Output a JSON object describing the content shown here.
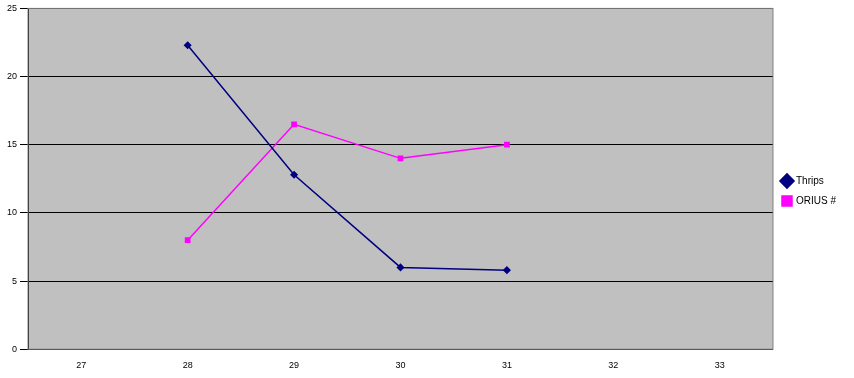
{
  "chart_data": {
    "type": "line",
    "categories": [
      "27",
      "28",
      "29",
      "30",
      "31",
      "32",
      "33"
    ],
    "series": [
      {
        "name": "Thrips",
        "color": "#000080",
        "marker": "diamond",
        "values": [
          null,
          22.3,
          12.8,
          6.0,
          5.8,
          null,
          null
        ]
      },
      {
        "name": "ORIUS #",
        "color": "#ff00ff",
        "marker": "square",
        "values": [
          null,
          8.0,
          16.5,
          14.0,
          15.0,
          null,
          null
        ]
      }
    ],
    "ylim": [
      0,
      25
    ],
    "yticks": [
      0,
      5,
      10,
      15,
      20,
      25
    ],
    "grid": true,
    "legend": "right"
  }
}
